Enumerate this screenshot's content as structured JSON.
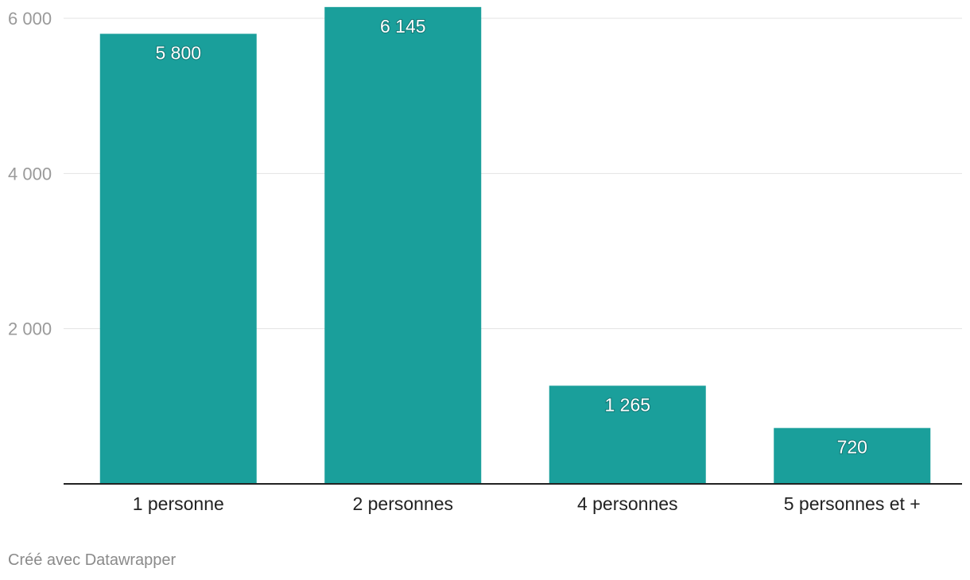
{
  "chart_data": {
    "type": "bar",
    "categories": [
      "1 personne",
      "2 personnes",
      "4 personnes",
      "5 personnes et +"
    ],
    "values": [
      5800,
      6145,
      1265,
      720
    ],
    "value_labels": [
      "5 800",
      "6 145",
      "1 265",
      "720"
    ],
    "yticks": [
      2000,
      4000,
      6000
    ],
    "ytick_labels": [
      "2 000",
      "4 000",
      "6 000"
    ],
    "ylim": [
      0,
      6000
    ],
    "grid": true,
    "bar_color": "#1a9f9b"
  },
  "footer": {
    "credit": "Créé avec Datawrapper"
  }
}
